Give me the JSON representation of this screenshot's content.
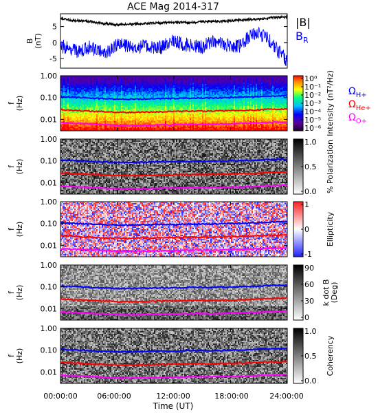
{
  "title": "ACE Mag 2014-317",
  "time_axis": {
    "label": "Time (UT)",
    "ticks": [
      "00:00:00",
      "06:00:00",
      "12:00:00",
      "18:00:00",
      "24:00:00"
    ],
    "range_hours": [
      0,
      24
    ]
  },
  "line_labels": {
    "B_total": "|B|",
    "B_R_main": "B",
    "B_R_sub": "R",
    "omega": "Ω",
    "H": "H+",
    "He": "He+",
    "O": "O+"
  },
  "colors": {
    "total": "#000000",
    "radial": "#0000ff",
    "H": "#0000ff",
    "He": "#ff0000",
    "O": "#ff00ff"
  },
  "freq_ticks": [
    "1.00",
    "0.10",
    "0.01"
  ],
  "freq_range": [
    0.003,
    1.0
  ],
  "freq_ylabel_main": "f",
  "freq_ylabel_unit": "(Hz)",
  "chart_data": [
    {
      "type": "line",
      "panel": "magnetic-field",
      "ylabel_main": "B",
      "ylabel_unit": "(nT)",
      "y_ticks": [
        "5",
        "0",
        "-5"
      ],
      "ylim": [
        -8,
        9
      ],
      "x": [
        0,
        1,
        2,
        3,
        4,
        5,
        6,
        7,
        8,
        9,
        10,
        11,
        12,
        13,
        14,
        15,
        16,
        17,
        18,
        19,
        20,
        21,
        22,
        23,
        24
      ],
      "series": [
        {
          "name": "|B|",
          "values": [
            7.5,
            7.0,
            6.8,
            6.6,
            6.2,
            5.8,
            5.6,
            5.7,
            5.8,
            6.0,
            6.1,
            6.2,
            6.3,
            6.2,
            6.3,
            6.5,
            6.6,
            6.6,
            6.8,
            7.0,
            7.2,
            7.4,
            7.6,
            7.9,
            8.0
          ]
        },
        {
          "name": "B_R",
          "values": [
            -1.0,
            -2.0,
            -3.0,
            -1.5,
            -2.5,
            -3.0,
            -0.5,
            -1.0,
            -1.5,
            -1.0,
            -2.0,
            -1.0,
            0.5,
            -0.5,
            -1.0,
            -1.5,
            0.5,
            -0.5,
            -1.0,
            -1.0,
            2.0,
            3.0,
            1.0,
            -2.5,
            -6.0
          ]
        }
      ]
    },
    {
      "type": "heatmap",
      "panel": "intensity",
      "colorbar_label": "Intensity (nT²/Hz)",
      "colorbar_ticks": [
        "10⁰",
        "10⁻¹",
        "10⁻²",
        "10⁻³",
        "10⁻⁴",
        "10⁻⁵",
        "10⁻⁶"
      ],
      "colorbar_range": [
        -6,
        0
      ]
    },
    {
      "type": "heatmap",
      "panel": "polarization",
      "colorbar_label": "% Polarization",
      "colorbar_ticks": [
        "1.0",
        "0.5",
        "0.0"
      ],
      "colorbar_range": [
        0,
        1
      ]
    },
    {
      "type": "heatmap",
      "panel": "ellipticity",
      "colorbar_label": "Ellipticity",
      "colorbar_ticks": [
        "1",
        "0",
        "-1"
      ],
      "colorbar_range": [
        -1,
        1
      ]
    },
    {
      "type": "heatmap",
      "panel": "kdotb",
      "colorbar_label_main": "k dot B",
      "colorbar_label_unit": "(Deg)",
      "colorbar_ticks": [
        "90",
        "60",
        "30",
        "0"
      ],
      "colorbar_range": [
        0,
        90
      ]
    },
    {
      "type": "heatmap",
      "panel": "coherency",
      "colorbar_label": "Coherency",
      "colorbar_ticks": [
        "1.0",
        "0.5",
        "0.0"
      ],
      "colorbar_range": [
        0,
        1
      ]
    }
  ],
  "gyrofrequencies": {
    "x": [
      0,
      2,
      4,
      6,
      8,
      10,
      12,
      14,
      16,
      18,
      20,
      22,
      24
    ],
    "H": [
      0.11,
      0.1,
      0.09,
      0.085,
      0.085,
      0.09,
      0.09,
      0.095,
      0.095,
      0.1,
      0.105,
      0.115,
      0.12
    ],
    "He": [
      0.028,
      0.025,
      0.023,
      0.021,
      0.021,
      0.022,
      0.023,
      0.024,
      0.024,
      0.025,
      0.026,
      0.029,
      0.03
    ],
    "O": [
      0.007,
      0.0065,
      0.006,
      0.0053,
      0.0053,
      0.0055,
      0.0057,
      0.006,
      0.006,
      0.0063,
      0.0066,
      0.0072,
      0.0075
    ]
  }
}
